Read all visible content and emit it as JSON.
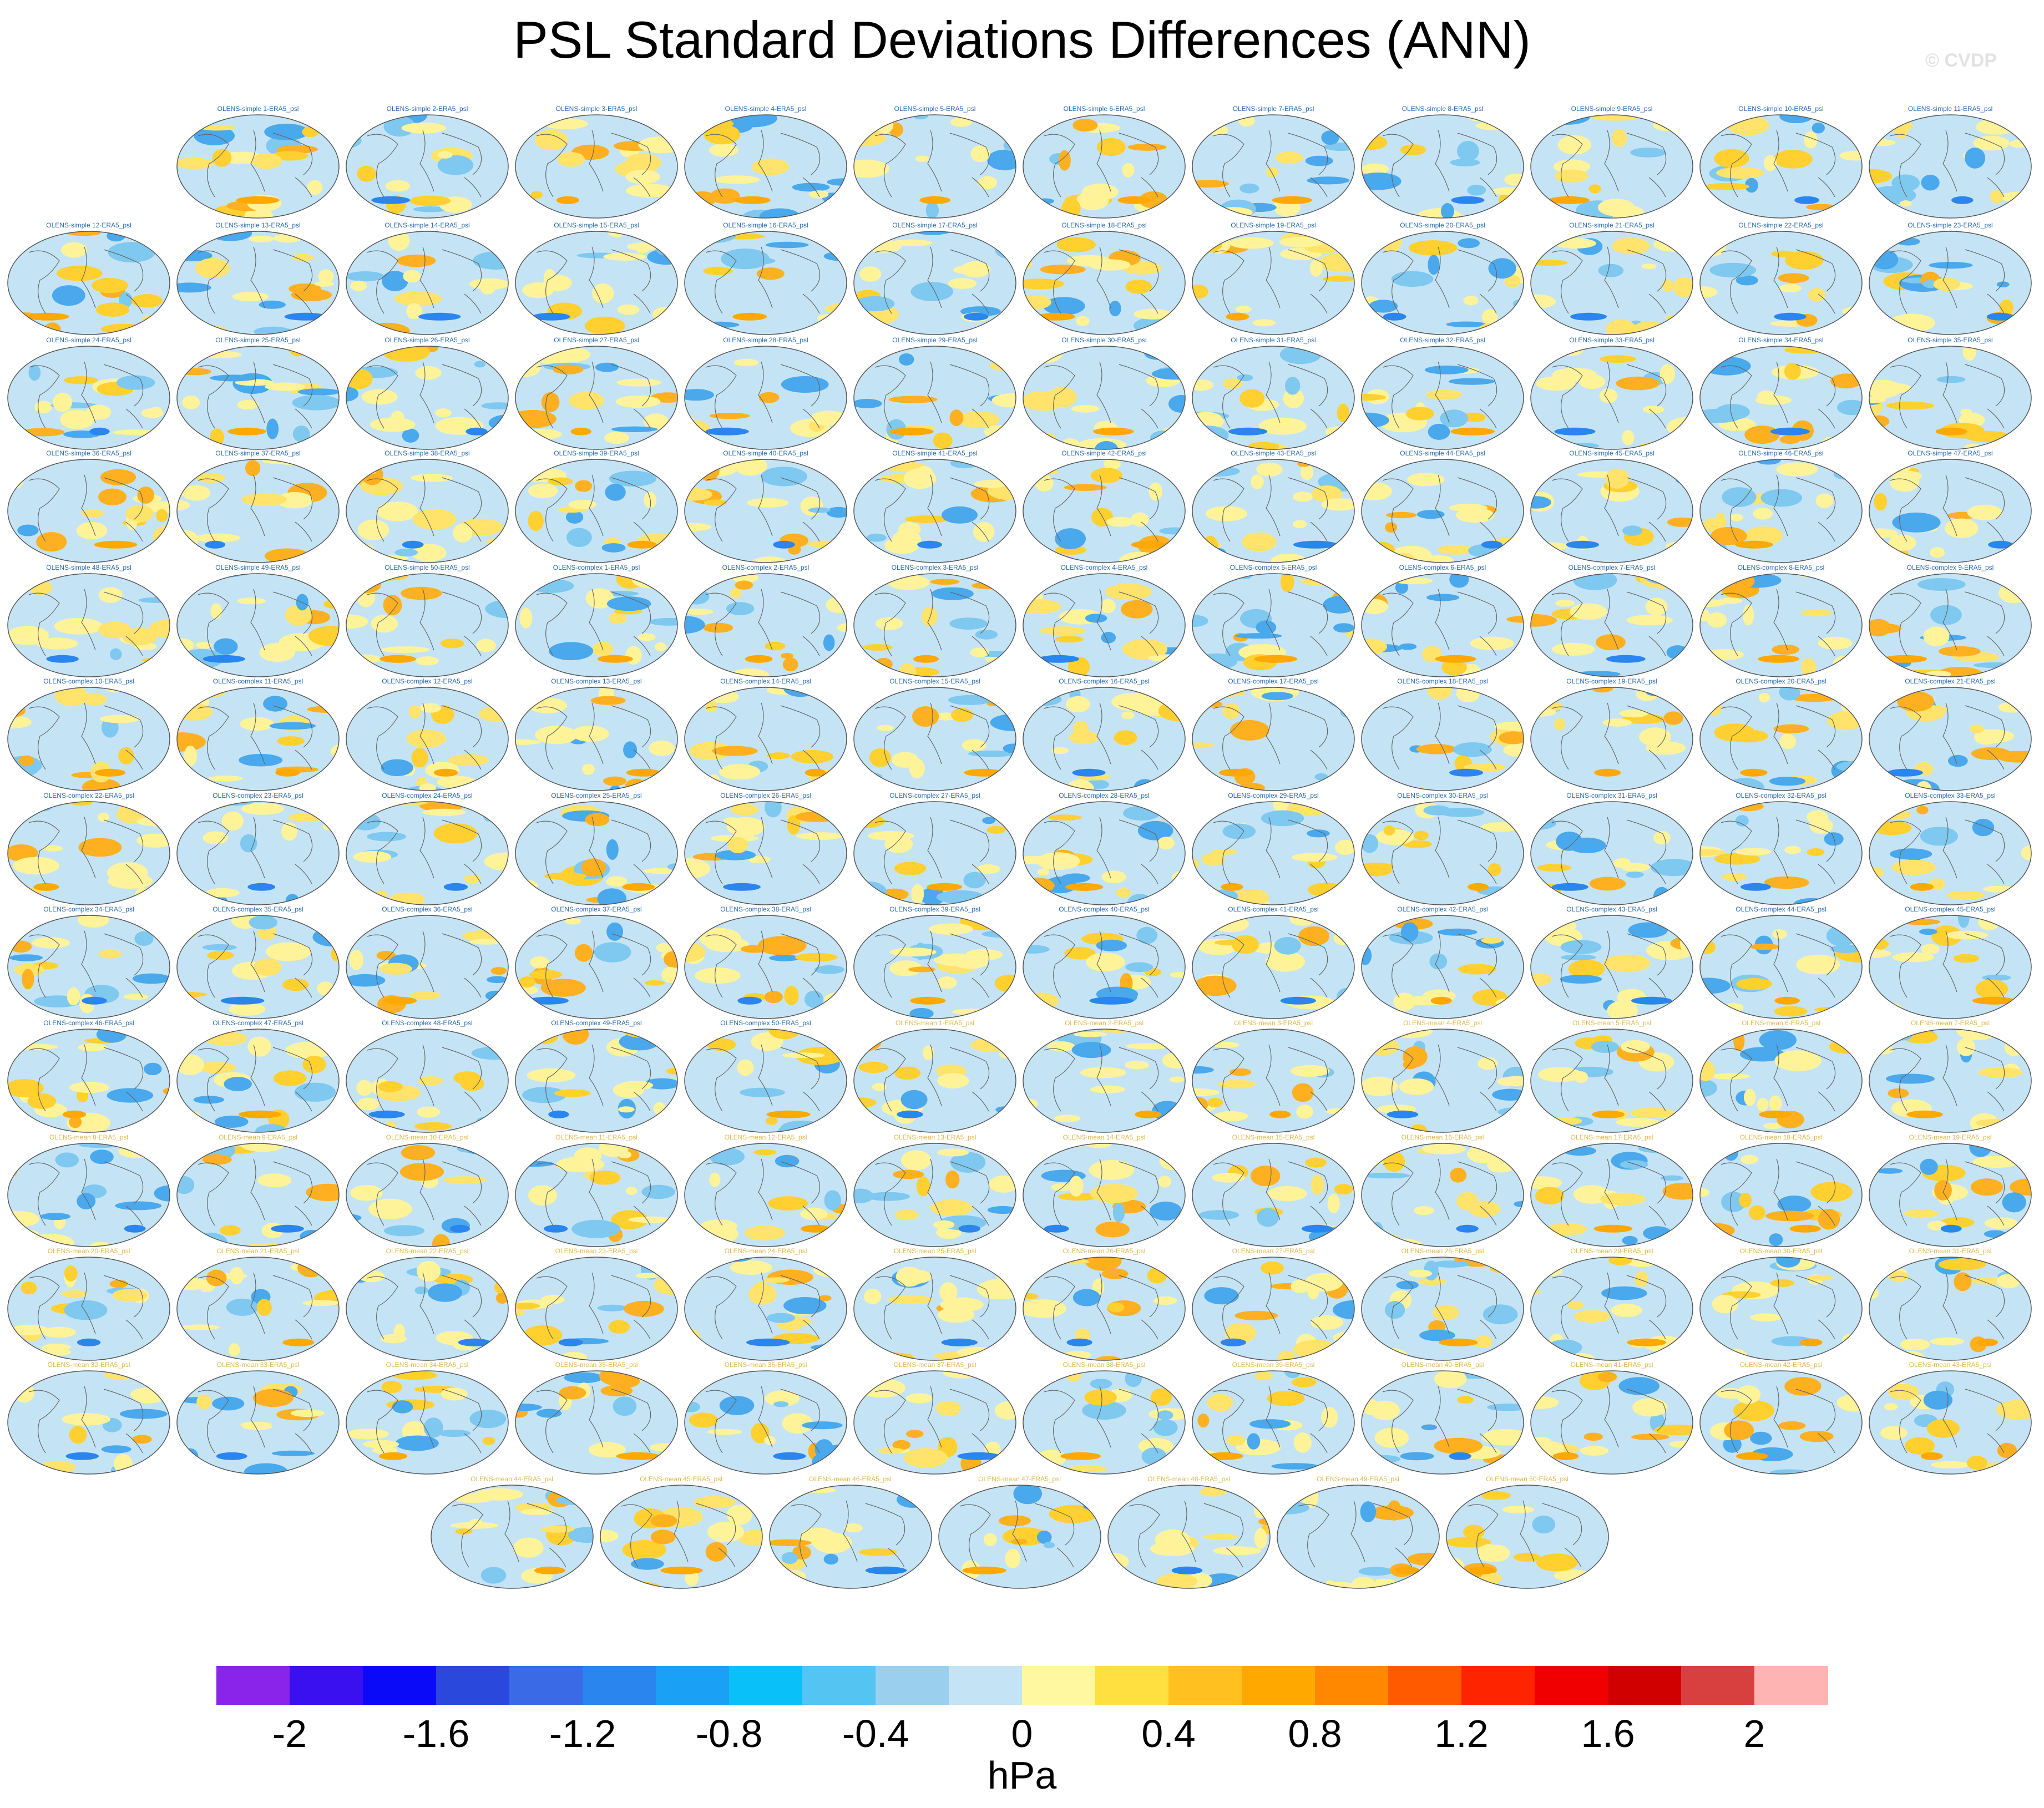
{
  "title": "PSL Standard Deviations Differences (ANN)",
  "copyright": "© CVDP",
  "chart_data": {
    "type": "heatmap",
    "title": "PSL Standard Deviations Differences (ANN)",
    "panel_type": "global map panels (Robinson projection), PSL standard deviation difference model minus ERA5",
    "panel_title_colors": {
      "OLENS-simple": "#2b6cb0",
      "OLENS-complex": "#2b6cb0",
      "OLENS-mean": "#e0b84a"
    },
    "panel_rows": [
      [
        "OLENS-simple 1-ERA5_psl",
        "OLENS-simple 2-ERA5_psl",
        "OLENS-simple 3-ERA5_psl",
        "OLENS-simple 4-ERA5_psl",
        "OLENS-simple 5-ERA5_psl",
        "OLENS-simple 6-ERA5_psl",
        "OLENS-simple 7-ERA5_psl",
        "OLENS-simple 8-ERA5_psl",
        "OLENS-simple 9-ERA5_psl",
        "OLENS-simple 10-ERA5_psl",
        "OLENS-simple 11-ERA5_psl"
      ],
      [
        "OLENS-simple 12-ERA5_psl",
        "OLENS-simple 13-ERA5_psl",
        "OLENS-simple 14-ERA5_psl",
        "OLENS-simple 15-ERA5_psl",
        "OLENS-simple 16-ERA5_psl",
        "OLENS-simple 17-ERA5_psl",
        "OLENS-simple 18-ERA5_psl",
        "OLENS-simple 19-ERA5_psl",
        "OLENS-simple 20-ERA5_psl",
        "OLENS-simple 21-ERA5_psl",
        "OLENS-simple 22-ERA5_psl",
        "OLENS-simple 23-ERA5_psl"
      ],
      [
        "OLENS-simple 24-ERA5_psl",
        "OLENS-simple 25-ERA5_psl",
        "OLENS-simple 26-ERA5_psl",
        "OLENS-simple 27-ERA5_psl",
        "OLENS-simple 28-ERA5_psl",
        "OLENS-simple 29-ERA5_psl",
        "OLENS-simple 30-ERA5_psl",
        "OLENS-simple 31-ERA5_psl",
        "OLENS-simple 32-ERA5_psl",
        "OLENS-simple 33-ERA5_psl",
        "OLENS-simple 34-ERA5_psl",
        "OLENS-simple 35-ERA5_psl"
      ],
      [
        "OLENS-simple 36-ERA5_psl",
        "OLENS-simple 37-ERA5_psl",
        "OLENS-simple 38-ERA5_psl",
        "OLENS-simple 39-ERA5_psl",
        "OLENS-simple 40-ERA5_psl",
        "OLENS-simple 41-ERA5_psl",
        "OLENS-simple 42-ERA5_psl",
        "OLENS-simple 43-ERA5_psl",
        "OLENS-simple 44-ERA5_psl",
        "OLENS-simple 45-ERA5_psl",
        "OLENS-simple 46-ERA5_psl",
        "OLENS-simple 47-ERA5_psl"
      ],
      [
        "OLENS-simple 48-ERA5_psl",
        "OLENS-simple 49-ERA5_psl",
        "OLENS-simple 50-ERA5_psl",
        "OLENS-complex 1-ERA5_psl",
        "OLENS-complex 2-ERA5_psl",
        "OLENS-complex 3-ERA5_psl",
        "OLENS-complex 4-ERA5_psl",
        "OLENS-complex 5-ERA5_psl",
        "OLENS-complex 6-ERA5_psl",
        "OLENS-complex 7-ERA5_psl",
        "OLENS-complex 8-ERA5_psl",
        "OLENS-complex 9-ERA5_psl"
      ],
      [
        "OLENS-complex 10-ERA5_psl",
        "OLENS-complex 11-ERA5_psl",
        "OLENS-complex 12-ERA5_psl",
        "OLENS-complex 13-ERA5_psl",
        "OLENS-complex 14-ERA5_psl",
        "OLENS-complex 15-ERA5_psl",
        "OLENS-complex 16-ERA5_psl",
        "OLENS-complex 17-ERA5_psl",
        "OLENS-complex 18-ERA5_psl",
        "OLENS-complex 19-ERA5_psl",
        "OLENS-complex 20-ERA5_psl",
        "OLENS-complex 21-ERA5_psl"
      ],
      [
        "OLENS-complex 22-ERA5_psl",
        "OLENS-complex 23-ERA5_psl",
        "OLENS-complex 24-ERA5_psl",
        "OLENS-complex 25-ERA5_psl",
        "OLENS-complex 26-ERA5_psl",
        "OLENS-complex 27-ERA5_psl",
        "OLENS-complex 28-ERA5_psl",
        "OLENS-complex 29-ERA5_psl",
        "OLENS-complex 30-ERA5_psl",
        "OLENS-complex 31-ERA5_psl",
        "OLENS-complex 32-ERA5_psl",
        "OLENS-complex 33-ERA5_psl"
      ],
      [
        "OLENS-complex 34-ERA5_psl",
        "OLENS-complex 35-ERA5_psl",
        "OLENS-complex 36-ERA5_psl",
        "OLENS-complex 37-ERA5_psl",
        "OLENS-complex 38-ERA5_psl",
        "OLENS-complex 39-ERA5_psl",
        "OLENS-complex 40-ERA5_psl",
        "OLENS-complex 41-ERA5_psl",
        "OLENS-complex 42-ERA5_psl",
        "OLENS-complex 43-ERA5_psl",
        "OLENS-complex 44-ERA5_psl",
        "OLENS-complex 45-ERA5_psl"
      ],
      [
        "OLENS-complex 46-ERA5_psl",
        "OLENS-complex 47-ERA5_psl",
        "OLENS-complex 48-ERA5_psl",
        "OLENS-complex 49-ERA5_psl",
        "OLENS-complex 50-ERA5_psl",
        "OLENS-mean 1-ERA5_psl",
        "OLENS-mean 2-ERA5_psl",
        "OLENS-mean 3-ERA5_psl",
        "OLENS-mean 4-ERA5_psl",
        "OLENS-mean 5-ERA5_psl",
        "OLENS-mean 6-ERA5_psl",
        "OLENS-mean 7-ERA5_psl"
      ],
      [
        "OLENS-mean 8-ERA5_psl",
        "OLENS-mean 9-ERA5_psl",
        "OLENS-mean 10-ERA5_psl",
        "OLENS-mean 11-ERA5_psl",
        "OLENS-mean 12-ERA5_psl",
        "OLENS-mean 13-ERA5_psl",
        "OLENS-mean 14-ERA5_psl",
        "OLENS-mean 15-ERA5_psl",
        "OLENS-mean 16-ERA5_psl",
        "OLENS-mean 17-ERA5_psl",
        "OLENS-mean 18-ERA5_psl",
        "OLENS-mean 19-ERA5_psl"
      ],
      [
        "OLENS-mean 20-ERA5_psl",
        "OLENS-mean 21-ERA5_psl",
        "OLENS-mean 22-ERA5_psl",
        "OLENS-mean 23-ERA5_psl",
        "OLENS-mean 24-ERA5_psl",
        "OLENS-mean 25-ERA5_psl",
        "OLENS-mean 26-ERA5_psl",
        "OLENS-mean 27-ERA5_psl",
        "OLENS-mean 28-ERA5_psl",
        "OLENS-mean 29-ERA5_psl",
        "OLENS-mean 30-ERA5_psl",
        "OLENS-mean 31-ERA5_psl"
      ],
      [
        "OLENS-mean 32-ERA5_psl",
        "OLENS-mean 33-ERA5_psl",
        "OLENS-mean 34-ERA5_psl",
        "OLENS-mean 35-ERA5_psl",
        "OLENS-mean 36-ERA5_psl",
        "OLENS-mean 37-ERA5_psl",
        "OLENS-mean 38-ERA5_psl",
        "OLENS-mean 39-ERA5_psl",
        "OLENS-mean 40-ERA5_psl",
        "OLENS-mean 41-ERA5_psl",
        "OLENS-mean 42-ERA5_psl",
        "OLENS-mean 43-ERA5_psl"
      ],
      [
        "OLENS-mean 44-ERA5_psl",
        "OLENS-mean 45-ERA5_psl",
        "OLENS-mean 46-ERA5_psl",
        "OLENS-mean 47-ERA5_psl",
        "OLENS-mean 48-ERA5_psl",
        "OLENS-mean 49-ERA5_psl",
        "OLENS-mean 50-ERA5_psl"
      ]
    ],
    "colorbar": {
      "levels": [
        -2.2,
        -2.0,
        -1.8,
        -1.6,
        -1.4,
        -1.2,
        -1.0,
        -0.8,
        -0.6,
        -0.4,
        -0.2,
        0,
        0.2,
        0.4,
        0.6,
        0.8,
        1.0,
        1.2,
        1.4,
        1.6,
        1.8,
        2.0,
        2.2
      ],
      "colors": [
        "#8a24ea",
        "#3a10f0",
        "#0a0af8",
        "#2a48dc",
        "#3a6ae6",
        "#2a86ee",
        "#1aa0f4",
        "#0ac0f8",
        "#54c4f2",
        "#9ad0ee",
        "#c4e4f6",
        "#fff8a0",
        "#ffe040",
        "#ffc020",
        "#ffa800",
        "#ff8800",
        "#ff5a00",
        "#ff2400",
        "#f00000",
        "#d00000",
        "#d84040",
        "#ffb4b4"
      ],
      "tick_labels": [
        "-2",
        "-1.6",
        "-1.2",
        "-0.8",
        "-0.4",
        "0",
        "0.4",
        "0.8",
        "1.2",
        "1.6",
        "2"
      ],
      "tick_values": [
        -2,
        -1.6,
        -1.2,
        -0.8,
        -0.4,
        0,
        0.4,
        0.8,
        1.2,
        1.6,
        2
      ],
      "units": "hPa"
    }
  }
}
